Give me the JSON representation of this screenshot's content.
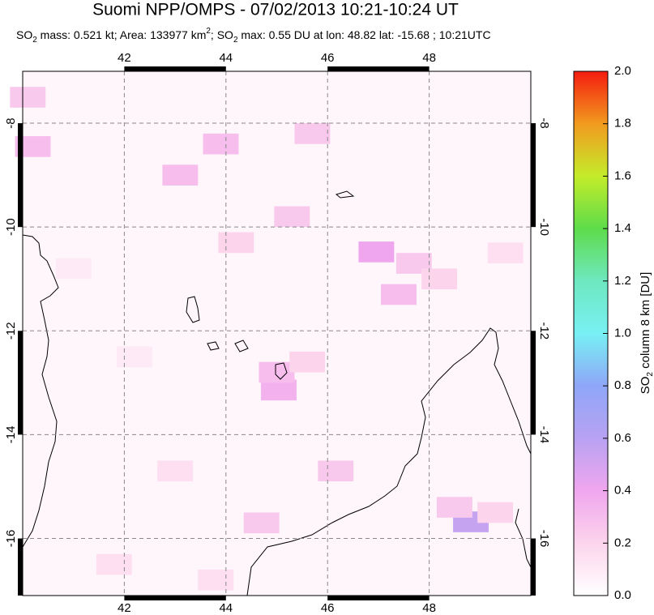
{
  "chart_data": {
    "type": "map",
    "title": "Suomi NPP/OMPS - 07/02/2013 10:21-10:24 UT",
    "subtitle": [
      "SO",
      "2",
      " mass: 0.521 kt; Area: 133977 km",
      "2",
      "; SO",
      "2",
      " max: 0.55 DU at lon: 48.82 lat: -15.68 ; 10:21UTC"
    ],
    "xlim": [
      40,
      50
    ],
    "ylim": [
      -17.1,
      -7
    ],
    "xticks": [
      42,
      44,
      46,
      48
    ],
    "yticks": [
      -8,
      -10,
      -12,
      -14,
      -16
    ],
    "grid": true,
    "cells": {
      "lon": [
        45.04,
        45.0,
        48.82,
        46.96,
        43.1,
        40.2,
        40.1,
        43.9,
        45.3,
        47.4,
        47.7,
        44.2,
        46.16,
        45.6,
        48.5,
        49.3,
        44.7,
        41.8,
        43.0,
        45.7,
        48.2,
        42.2,
        49.5,
        43.8,
        41.0
      ],
      "lat": [
        -13.14,
        -12.8,
        -15.68,
        -10.48,
        -9.0,
        -8.45,
        -7.5,
        -8.4,
        -9.8,
        -11.3,
        -10.7,
        -10.3,
        -14.7,
        -12.6,
        -15.4,
        -15.5,
        -15.7,
        -16.5,
        -14.7,
        -8.2,
        -11.0,
        -12.5,
        -10.5,
        -16.8,
        -10.8
      ],
      "values": [
        0.35,
        0.3,
        0.55,
        0.4,
        0.3,
        0.3,
        0.25,
        0.3,
        0.25,
        0.3,
        0.25,
        0.2,
        0.25,
        0.2,
        0.25,
        0.2,
        0.25,
        0.15,
        0.15,
        0.25,
        0.2,
        0.1,
        0.15,
        0.15,
        0.1
      ]
    },
    "colorbar": {
      "label": [
        "SO",
        "2",
        " column 8 km [DU]"
      ],
      "clim": [
        0,
        2
      ],
      "ticks": [
        {
          "value": 0,
          "label": "0.0"
        },
        0.2,
        0.4,
        0.6,
        0.8,
        {
          "value": 1,
          "label": "1.0"
        },
        1.2,
        1.4,
        1.6,
        1.8,
        {
          "value": 2,
          "label": "2.0"
        }
      ],
      "colormap": [
        "#ffffff",
        "#fcd4ec",
        "#f0a6ee",
        "#b8a2f2",
        "#8fa6f8",
        "#78f0f4",
        "#6ee8c0",
        "#5edc4a",
        "#c4ec2a",
        "#f29a1e",
        "#f41c10"
      ]
    }
  }
}
